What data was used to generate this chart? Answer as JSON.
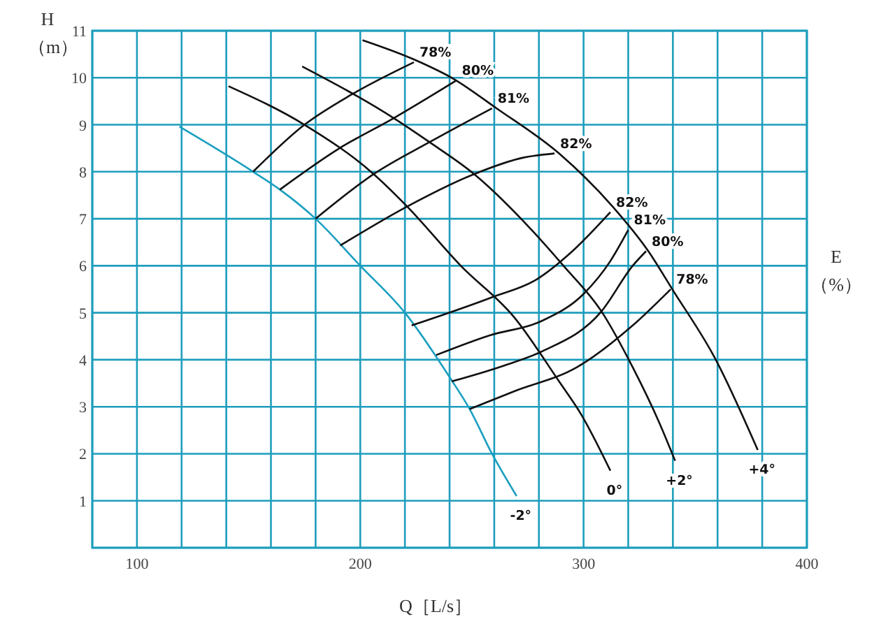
{
  "chart_data": {
    "type": "line",
    "xlabel": "Q［L/s］",
    "ylabel": "H （m）",
    "y2label": "E （%）",
    "xlim": [
      80,
      400
    ],
    "ylim": [
      0,
      11
    ],
    "xticks": [
      {
        "value": 80,
        "label": null
      },
      100,
      {
        "value": 120,
        "label": null
      },
      {
        "value": 140,
        "label": null
      },
      {
        "value": 160,
        "label": null
      },
      {
        "value": 180,
        "label": null
      },
      200,
      {
        "value": 220,
        "label": null
      },
      {
        "value": 240,
        "label": null
      },
      {
        "value": 260,
        "label": null
      },
      {
        "value": 280,
        "label": null
      },
      300,
      {
        "value": 320,
        "label": null
      },
      {
        "value": 340,
        "label": null
      },
      {
        "value": 360,
        "label": null
      },
      {
        "value": 380,
        "label": null
      },
      400
    ],
    "yticks": [
      {
        "value": 0,
        "label": null
      },
      1,
      2,
      3,
      4,
      5,
      6,
      7,
      8,
      9,
      10,
      11
    ],
    "grid": true,
    "marker": "none",
    "line_style": "solid",
    "series": [
      {
        "name": "-2°",
        "color": "#1a9fc0",
        "x": [
          119,
          152,
          164,
          180,
          200,
          220,
          240,
          249,
          259,
          270
        ],
        "values": [
          8.96,
          8.0,
          7.62,
          7.0,
          6.0,
          5.0,
          3.63,
          2.95,
          2.0,
          1.1
        ]
      },
      {
        "name": "0°",
        "color": "#111111",
        "x": [
          141,
          175,
          206,
          221,
          245,
          269,
          289,
          299,
          312
        ],
        "values": [
          9.82,
          9.0,
          7.95,
          7.26,
          6.0,
          4.9,
          3.54,
          2.83,
          1.64
        ]
      },
      {
        "name": "+2°",
        "color": "#111111",
        "x": [
          174,
          215,
          231,
          251,
          276,
          291,
          308,
          322,
          334,
          341
        ],
        "values": [
          10.24,
          9.14,
          8.63,
          7.95,
          6.8,
          6.0,
          5.03,
          3.84,
          2.65,
          1.85
        ]
      },
      {
        "name": "+4°",
        "color": "#111111",
        "x": [
          201,
          224,
          242,
          261,
          289,
          313,
          329,
          340,
          359,
          378
        ],
        "values": [
          10.8,
          10.39,
          9.97,
          9.35,
          8.39,
          7.26,
          6.31,
          5.48,
          4.02,
          2.08
        ]
      },
      {
        "name": "78%",
        "color": "#111111",
        "x": [
          152,
          175,
          196,
          224
        ],
        "values": [
          8.0,
          9.0,
          9.64,
          10.33
        ]
      },
      {
        "name": "80%",
        "color": "#111111",
        "x": [
          164,
          190,
          215,
          243
        ],
        "values": [
          7.62,
          8.48,
          9.14,
          9.94
        ]
      },
      {
        "name": "81%",
        "color": "#111111",
        "x": [
          180,
          206,
          231,
          259
        ],
        "values": [
          7.0,
          7.95,
          8.63,
          9.35
        ]
      },
      {
        "name": "82%",
        "color": "#111111",
        "x": [
          191,
          221,
          251,
          273,
          287
        ],
        "values": [
          6.43,
          7.26,
          7.95,
          8.3,
          8.39
        ]
      },
      {
        "name": "82%",
        "color": "#111111",
        "x": [
          223,
          259,
          279,
          295,
          312
        ],
        "values": [
          4.73,
          5.33,
          5.71,
          6.31,
          7.14
        ]
      },
      {
        "name": "81%",
        "color": "#111111",
        "x": [
          234,
          258,
          281,
          300,
          312,
          320
        ],
        "values": [
          4.1,
          4.52,
          4.82,
          5.4,
          6.1,
          6.76
        ]
      },
      {
        "name": "80%",
        "color": "#111111",
        "x": [
          241,
          264,
          281,
          308,
          322,
          328
        ],
        "values": [
          3.54,
          3.87,
          4.17,
          5.03,
          6.0,
          6.31
        ]
      },
      {
        "name": "78%",
        "color": "#111111",
        "x": [
          249,
          269,
          297,
          322,
          339
        ],
        "values": [
          2.95,
          3.33,
          3.84,
          4.73,
          5.5
        ]
      }
    ]
  }
}
